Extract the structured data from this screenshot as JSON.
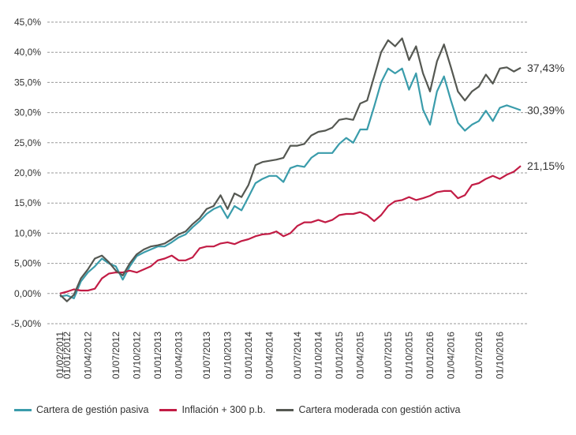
{
  "chart_data": {
    "type": "line",
    "title": "",
    "xlabel": "",
    "ylabel": "",
    "ylim": [
      -5,
      45
    ],
    "y_ticks": [
      "-5,00%",
      "0,00%",
      "5,00%",
      "10,0%",
      "15,0%",
      "20,0%",
      "25,0%",
      "30,0%",
      "35,0%",
      "40,0%",
      "45,0%"
    ],
    "x_tick_labels": [
      "01/02/2011",
      "01/01/2012",
      "01/04/2012",
      "01/07/2012",
      "01/10/2012",
      "01/01/2013",
      "01/04/2013",
      "01/07/2013",
      "01/10/2013",
      "01/01/2014",
      "01/04/2014",
      "01/07/2014",
      "01/10/2014",
      "01/01/2015",
      "01/04/2015",
      "01/07/2015",
      "01/10/2015",
      "01/01/2016",
      "01/04/2016",
      "01/07/2016",
      "01/10/2016"
    ],
    "grid": true,
    "legend_position": "bottom",
    "end_labels": [
      "37,43%",
      "30,39%",
      "21,15%"
    ],
    "series": [
      {
        "name": "Cartera de gestión pasiva",
        "color": "#3a9cab",
        "values": [
          -0.5,
          -0.3,
          -0.8,
          2.0,
          3.5,
          4.5,
          5.8,
          5.0,
          4.5,
          2.3,
          4.5,
          6.2,
          6.8,
          7.3,
          7.8,
          7.8,
          8.5,
          9.3,
          9.8,
          11.0,
          12.0,
          13.2,
          14.0,
          14.5,
          12.5,
          14.5,
          13.8,
          16.0,
          18.3,
          19.0,
          19.5,
          19.5,
          18.5,
          20.8,
          21.2,
          21.0,
          22.5,
          23.3,
          23.3,
          23.3,
          24.8,
          25.8,
          25.0,
          27.2,
          27.2,
          31.0,
          35.0,
          37.3,
          36.5,
          37.3,
          33.8,
          36.5,
          30.5,
          28.0,
          33.5,
          36.0,
          32.0,
          28.3,
          27.0,
          28.0,
          28.6,
          30.3,
          28.6,
          30.8,
          31.2,
          30.8,
          30.39
        ]
      },
      {
        "name": "Inflación + 300 p.b.",
        "color": "#c21c45",
        "values": [
          0.0,
          0.3,
          0.7,
          0.5,
          0.5,
          0.8,
          2.5,
          3.3,
          3.5,
          3.5,
          3.8,
          3.5,
          4.0,
          4.5,
          5.5,
          5.8,
          6.3,
          5.5,
          5.5,
          6.0,
          7.5,
          7.8,
          7.8,
          8.3,
          8.5,
          8.2,
          8.7,
          9.0,
          9.5,
          9.8,
          9.9,
          10.3,
          9.5,
          10.0,
          11.2,
          11.8,
          11.8,
          12.2,
          11.8,
          12.2,
          13.0,
          13.2,
          13.2,
          13.5,
          13.0,
          12.0,
          13.0,
          14.5,
          15.3,
          15.5,
          16.0,
          15.5,
          15.8,
          16.2,
          16.8,
          17.0,
          17.0,
          15.8,
          16.3,
          18.0,
          18.3,
          19.0,
          19.5,
          19.0,
          19.7,
          20.2,
          21.15
        ]
      },
      {
        "name": "Cartera moderada con gestión activa",
        "color": "#555852",
        "values": [
          -0.2,
          -1.3,
          -0.2,
          2.5,
          4.0,
          5.8,
          6.3,
          5.2,
          3.8,
          3.0,
          5.0,
          6.5,
          7.3,
          7.8,
          8.0,
          8.3,
          9.0,
          9.8,
          10.3,
          11.5,
          12.5,
          14.0,
          14.5,
          16.3,
          14.0,
          16.6,
          16.0,
          18.0,
          21.3,
          21.8,
          22.0,
          22.2,
          22.5,
          24.5,
          24.5,
          24.8,
          26.2,
          26.8,
          27.0,
          27.5,
          28.8,
          29.0,
          28.8,
          31.5,
          32.0,
          36.0,
          40.0,
          42.0,
          41.0,
          42.3,
          38.7,
          41.0,
          36.5,
          33.5,
          38.5,
          41.3,
          37.5,
          33.5,
          32.0,
          33.5,
          34.3,
          36.3,
          34.8,
          37.3,
          37.5,
          36.8,
          37.43
        ]
      }
    ]
  }
}
